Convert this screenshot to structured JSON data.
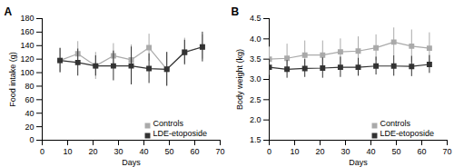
{
  "chart_data": [
    {
      "type": "line",
      "title": "A",
      "xlabel": "Days",
      "ylabel": "Food intake (g)",
      "xlim": [
        0,
        70
      ],
      "ylim": [
        0,
        180
      ],
      "xticks": [
        0,
        10,
        20,
        30,
        40,
        50,
        60,
        70
      ],
      "yticks": [
        0,
        20,
        40,
        60,
        80,
        100,
        120,
        140,
        160,
        180
      ],
      "x": [
        7,
        14,
        21,
        28,
        35,
        42,
        49,
        56,
        63
      ],
      "legend": "lower right",
      "series": [
        {
          "name": "Controls",
          "color": "#aaaaaa",
          "marker": "square",
          "values": [
            118,
            128,
            110,
            125,
            119,
            137,
            105,
            131,
            138
          ],
          "yerr": [
            18,
            18,
            20,
            18,
            22,
            20,
            25,
            20,
            18
          ]
        },
        {
          "name": "LDE-etoposide",
          "color": "#333333",
          "marker": "square",
          "values": [
            118,
            115,
            110,
            110,
            110,
            106,
            105,
            130,
            138
          ],
          "yerr": [
            18,
            20,
            15,
            22,
            28,
            22,
            25,
            18,
            22
          ]
        }
      ]
    },
    {
      "type": "line",
      "title": "B",
      "xlabel": "Days",
      "ylabel": "Body weight (kg)",
      "xlim": [
        0,
        70
      ],
      "ylim": [
        1.5,
        4.5
      ],
      "xticks": [
        0,
        10,
        20,
        30,
        40,
        50,
        60,
        70
      ],
      "yticks": [
        1.5,
        {
          "value": 2.0,
          "label": "2.0"
        },
        2.5,
        {
          "value": 3.0,
          "label": "3.0"
        },
        3.5,
        {
          "value": 4.0,
          "label": "4.0"
        },
        4.5
      ],
      "x": [
        0,
        7,
        14,
        21,
        28,
        35,
        42,
        49,
        56,
        63
      ],
      "legend": "lower right",
      "series": [
        {
          "name": "Controls",
          "color": "#aaaaaa",
          "marker": "square",
          "values": [
            3.5,
            3.52,
            3.6,
            3.6,
            3.68,
            3.7,
            3.78,
            3.92,
            3.82,
            3.77
          ],
          "yerr": [
            0.3,
            0.35,
            0.35,
            0.35,
            0.32,
            0.35,
            0.32,
            0.35,
            0.4,
            0.38
          ]
        },
        {
          "name": "LDE-etoposide",
          "color": "#333333",
          "marker": "square",
          "values": [
            3.3,
            3.25,
            3.27,
            3.28,
            3.3,
            3.3,
            3.33,
            3.33,
            3.32,
            3.37
          ],
          "yerr": [
            0.2,
            0.22,
            0.22,
            0.25,
            0.25,
            0.22,
            0.22,
            0.25,
            0.25,
            0.22
          ]
        }
      ]
    }
  ]
}
